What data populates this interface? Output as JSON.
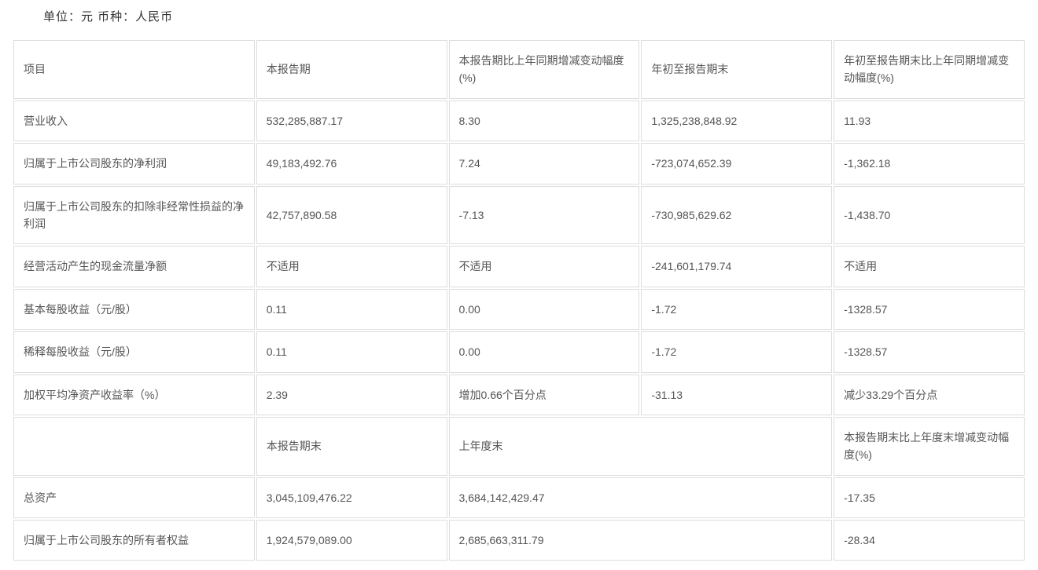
{
  "header": {
    "unit_label": "单位：元  币种：人民币"
  },
  "table": {
    "columns_top": {
      "item": "项目",
      "current_period": "本报告期",
      "current_change_pct": "本报告期比上年同期增减变动幅度(%)",
      "ytd": "年初至报告期末",
      "ytd_change_pct": "年初至报告期末比上年同期增减变动幅度(%)"
    },
    "rows_top": [
      {
        "item": "营业收入",
        "current": "532,285,887.17",
        "current_chg": "8.30",
        "ytd": "1,325,238,848.92",
        "ytd_chg": "11.93"
      },
      {
        "item": "归属于上市公司股东的净利润",
        "current": "49,183,492.76",
        "current_chg": "7.24",
        "ytd": "-723,074,652.39",
        "ytd_chg": "-1,362.18"
      },
      {
        "item": "归属于上市公司股东的扣除非经常性损益的净利润",
        "current": "42,757,890.58",
        "current_chg": "-7.13",
        "ytd": "-730,985,629.62",
        "ytd_chg": "-1,438.70"
      },
      {
        "item": "经营活动产生的现金流量净额",
        "current": "不适用",
        "current_chg": "不适用",
        "ytd": "-241,601,179.74",
        "ytd_chg": "不适用"
      },
      {
        "item": "基本每股收益（元/股）",
        "current": "0.11",
        "current_chg": "0.00",
        "ytd": "-1.72",
        "ytd_chg": "-1328.57"
      },
      {
        "item": "稀释每股收益（元/股）",
        "current": "0.11",
        "current_chg": "0.00",
        "ytd": "-1.72",
        "ytd_chg": "-1328.57"
      },
      {
        "item": "加权平均净资产收益率（%）",
        "current": "2.39",
        "current_chg": "增加0.66个百分点",
        "ytd": "-31.13",
        "ytd_chg": "减少33.29个百分点"
      }
    ],
    "columns_mid": {
      "item": "",
      "period_end": "本报告期末",
      "prev_year_end": "上年度末",
      "change_pct": "本报告期末比上年度末增减变动幅度(%)"
    },
    "rows_bottom": [
      {
        "item": "总资产",
        "period_end": "3,045,109,476.22",
        "prev_year_end": "3,684,142,429.47",
        "change_pct": "-17.35"
      },
      {
        "item": "归属于上市公司股东的所有者权益",
        "period_end": "1,924,579,089.00",
        "prev_year_end": "2,685,663,311.79",
        "change_pct": "-28.34"
      }
    ]
  }
}
